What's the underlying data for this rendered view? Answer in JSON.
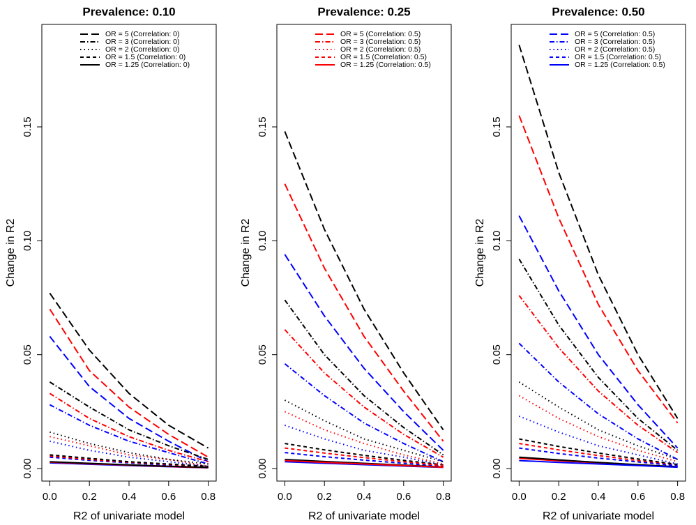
{
  "chart_data": [
    {
      "type": "line",
      "title": "Prevalence: 0.10",
      "xlabel": "R2 of univariate model",
      "ylabel": "Change in R2",
      "xlim": [
        -0.04,
        0.84
      ],
      "ylim": [
        -0.0055,
        0.195
      ],
      "xticks": [
        {
          "value": 0,
          "label": "0.0"
        },
        {
          "value": 0.2,
          "label": "0.2"
        },
        {
          "value": 0.4,
          "label": "0.4"
        },
        {
          "value": 0.6,
          "label": "0.6"
        },
        {
          "value": 0.8,
          "label": "0.8"
        }
      ],
      "yticks": [
        {
          "value": 0,
          "label": "0.00"
        },
        {
          "value": 0.05,
          "label": "0.05"
        },
        {
          "value": 0.1,
          "label": "0.10"
        },
        {
          "value": 0.15,
          "label": "0.15"
        }
      ],
      "x": [
        0,
        0.2,
        0.4,
        0.6,
        0.8
      ],
      "series": [
        {
          "name": "OR = 5 (Correlation: 0)",
          "color": "#000000",
          "linestyle": "longdash",
          "values": [
            0.077,
            0.052,
            0.033,
            0.019,
            0.009
          ]
        },
        {
          "name": "OR = 3 (Correlation: 0)",
          "color": "#000000",
          "linestyle": "dashdot",
          "values": [
            0.038,
            0.027,
            0.017,
            0.01,
            0.004
          ]
        },
        {
          "name": "OR = 2 (Correlation: 0)",
          "color": "#000000",
          "linestyle": "dotted",
          "values": [
            0.016,
            0.011,
            0.007,
            0.004,
            0.002
          ]
        },
        {
          "name": "OR = 1.5 (Correlation: 0)",
          "color": "#000000",
          "linestyle": "dashed",
          "values": [
            0.006,
            0.0045,
            0.003,
            0.002,
            0.001
          ]
        },
        {
          "name": "OR = 1.25 (Correlation: 0)",
          "color": "#000000",
          "linestyle": "solid",
          "values": [
            0.003,
            0.0023,
            0.0016,
            0.001,
            0.0005
          ]
        },
        {
          "color": "#ff0000",
          "linestyle": "longdash",
          "values": [
            0.07,
            0.043,
            0.027,
            0.015,
            0.005
          ]
        },
        {
          "color": "#ff0000",
          "linestyle": "dashdot",
          "values": [
            0.033,
            0.022,
            0.014,
            0.008,
            0.003
          ]
        },
        {
          "color": "#ff0000",
          "linestyle": "dotted",
          "values": [
            0.014,
            0.01,
            0.006,
            0.004,
            0.001
          ]
        },
        {
          "color": "#ff0000",
          "linestyle": "dashed",
          "values": [
            0.0055,
            0.004,
            0.0028,
            0.0018,
            0.0008
          ]
        },
        {
          "color": "#ff0000",
          "linestyle": "solid",
          "values": [
            0.0028,
            0.0021,
            0.0015,
            0.0009,
            0.0004
          ]
        },
        {
          "color": "#0000ff",
          "linestyle": "longdash",
          "values": [
            0.058,
            0.036,
            0.022,
            0.012,
            0.003
          ]
        },
        {
          "color": "#0000ff",
          "linestyle": "dashdot",
          "values": [
            0.028,
            0.019,
            0.012,
            0.007,
            0.002
          ]
        },
        {
          "color": "#0000ff",
          "linestyle": "dotted",
          "values": [
            0.012,
            0.008,
            0.005,
            0.003,
            0.001
          ]
        },
        {
          "color": "#0000ff",
          "linestyle": "dashed",
          "values": [
            0.005,
            0.0036,
            0.0025,
            0.0015,
            0.0006
          ]
        },
        {
          "color": "#0000ff",
          "linestyle": "solid",
          "values": [
            0.0025,
            0.0019,
            0.0013,
            0.0008,
            0.0003
          ]
        }
      ]
    },
    {
      "type": "line",
      "title": "Prevalence: 0.25",
      "xlabel": "R2 of univariate model",
      "ylabel": "Change in R2",
      "xlim": [
        -0.04,
        0.84
      ],
      "ylim": [
        -0.0055,
        0.195
      ],
      "xticks": [
        {
          "value": 0,
          "label": "0.0"
        },
        {
          "value": 0.2,
          "label": "0.2"
        },
        {
          "value": 0.4,
          "label": "0.4"
        },
        {
          "value": 0.6,
          "label": "0.6"
        },
        {
          "value": 0.8,
          "label": "0.8"
        }
      ],
      "yticks": [
        {
          "value": 0,
          "label": "0.00"
        },
        {
          "value": 0.05,
          "label": "0.05"
        },
        {
          "value": 0.1,
          "label": "0.10"
        },
        {
          "value": 0.15,
          "label": "0.15"
        }
      ],
      "x": [
        0,
        0.2,
        0.4,
        0.6,
        0.8
      ],
      "series": [
        {
          "name": "OR = 5 (Correlation: 0.5)",
          "color": "#ff0000",
          "linestyle": "longdash",
          "values": [
            0.125,
            0.088,
            0.058,
            0.034,
            0.012
          ]
        },
        {
          "name": "OR = 3 (Correlation: 0.5)",
          "color": "#ff0000",
          "linestyle": "dashdot",
          "values": [
            0.061,
            0.042,
            0.027,
            0.015,
            0.005
          ]
        },
        {
          "name": "OR = 2 (Correlation: 0.5)",
          "color": "#ff0000",
          "linestyle": "dotted",
          "values": [
            0.025,
            0.017,
            0.011,
            0.006,
            0.002
          ]
        },
        {
          "name": "OR = 1.5 (Correlation: 0.5)",
          "color": "#ff0000",
          "linestyle": "dashed",
          "values": [
            0.009,
            0.0068,
            0.0048,
            0.003,
            0.0013
          ]
        },
        {
          "name": "OR = 1.25 (Correlation: 0.5)",
          "color": "#ff0000",
          "linestyle": "solid",
          "values": [
            0.0035,
            0.0027,
            0.002,
            0.0013,
            0.0006
          ]
        },
        {
          "color": "#000000",
          "linestyle": "longdash",
          "values": [
            0.148,
            0.105,
            0.07,
            0.042,
            0.017
          ]
        },
        {
          "color": "#000000",
          "linestyle": "dashdot",
          "values": [
            0.074,
            0.05,
            0.032,
            0.018,
            0.006
          ]
        },
        {
          "color": "#000000",
          "linestyle": "dotted",
          "values": [
            0.03,
            0.021,
            0.013,
            0.008,
            0.003
          ]
        },
        {
          "color": "#000000",
          "linestyle": "dashed",
          "values": [
            0.011,
            0.0082,
            0.0058,
            0.0036,
            0.0016
          ]
        },
        {
          "color": "#000000",
          "linestyle": "solid",
          "values": [
            0.004,
            0.0031,
            0.0023,
            0.0015,
            0.0007
          ]
        },
        {
          "color": "#0000ff",
          "linestyle": "longdash",
          "values": [
            0.094,
            0.067,
            0.044,
            0.025,
            0.008
          ]
        },
        {
          "color": "#0000ff",
          "linestyle": "dashdot",
          "values": [
            0.046,
            0.032,
            0.02,
            0.011,
            0.003
          ]
        },
        {
          "color": "#0000ff",
          "linestyle": "dotted",
          "values": [
            0.019,
            0.013,
            0.008,
            0.005,
            0.0015
          ]
        },
        {
          "color": "#0000ff",
          "linestyle": "dashed",
          "values": [
            0.007,
            0.0052,
            0.0037,
            0.0023,
            0.001
          ]
        },
        {
          "color": "#0000ff",
          "linestyle": "solid",
          "values": [
            0.003,
            0.0023,
            0.0017,
            0.0011,
            0.0005
          ]
        }
      ]
    },
    {
      "type": "line",
      "title": "Prevalence: 0.50",
      "xlabel": "R2 of univariate model",
      "ylabel": "Change in R2",
      "xlim": [
        -0.04,
        0.84
      ],
      "ylim": [
        -0.0055,
        0.195
      ],
      "xticks": [
        {
          "value": 0,
          "label": "0.0"
        },
        {
          "value": 0.2,
          "label": "0.2"
        },
        {
          "value": 0.4,
          "label": "0.4"
        },
        {
          "value": 0.6,
          "label": "0.6"
        },
        {
          "value": 0.8,
          "label": "0.8"
        }
      ],
      "yticks": [
        {
          "value": 0,
          "label": "0.00"
        },
        {
          "value": 0.05,
          "label": "0.05"
        },
        {
          "value": 0.1,
          "label": "0.10"
        },
        {
          "value": 0.15,
          "label": "0.15"
        }
      ],
      "x": [
        0,
        0.2,
        0.4,
        0.6,
        0.8
      ],
      "series": [
        {
          "name": "OR = 5 (Correlation: 0.5)",
          "color": "#0000ff",
          "linestyle": "longdash",
          "values": [
            0.111,
            0.078,
            0.05,
            0.028,
            0.009
          ]
        },
        {
          "name": "OR = 3 (Correlation: 0.5)",
          "color": "#0000ff",
          "linestyle": "dashdot",
          "values": [
            0.055,
            0.038,
            0.024,
            0.013,
            0.004
          ]
        },
        {
          "name": "OR = 2 (Correlation: 0.5)",
          "color": "#0000ff",
          "linestyle": "dotted",
          "values": [
            0.023,
            0.016,
            0.01,
            0.006,
            0.002
          ]
        },
        {
          "name": "OR = 1.5 (Correlation: 0.5)",
          "color": "#0000ff",
          "linestyle": "dashed",
          "values": [
            0.009,
            0.0066,
            0.0046,
            0.0029,
            0.0012
          ]
        },
        {
          "name": "OR = 1.25 (Correlation: 0.5)",
          "color": "#0000ff",
          "linestyle": "solid",
          "values": [
            0.0035,
            0.0027,
            0.002,
            0.0013,
            0.0006
          ]
        },
        {
          "color": "#000000",
          "linestyle": "longdash",
          "values": [
            0.186,
            0.13,
            0.085,
            0.05,
            0.022
          ]
        },
        {
          "color": "#000000",
          "linestyle": "dashdot",
          "values": [
            0.092,
            0.063,
            0.04,
            0.022,
            0.008
          ]
        },
        {
          "color": "#000000",
          "linestyle": "dotted",
          "values": [
            0.038,
            0.027,
            0.017,
            0.01,
            0.004
          ]
        },
        {
          "color": "#000000",
          "linestyle": "dashed",
          "values": [
            0.013,
            0.0097,
            0.0068,
            0.0042,
            0.0018
          ]
        },
        {
          "color": "#000000",
          "linestyle": "solid",
          "values": [
            0.005,
            0.0038,
            0.0027,
            0.0017,
            0.0008
          ]
        },
        {
          "color": "#ff0000",
          "linestyle": "longdash",
          "values": [
            0.155,
            0.11,
            0.072,
            0.043,
            0.02
          ]
        },
        {
          "color": "#ff0000",
          "linestyle": "dashdot",
          "values": [
            0.076,
            0.053,
            0.034,
            0.019,
            0.007
          ]
        },
        {
          "color": "#ff0000",
          "linestyle": "dotted",
          "values": [
            0.032,
            0.022,
            0.014,
            0.008,
            0.003
          ]
        },
        {
          "color": "#ff0000",
          "linestyle": "dashed",
          "values": [
            0.011,
            0.0082,
            0.0057,
            0.0035,
            0.0015
          ]
        },
        {
          "color": "#ff0000",
          "linestyle": "solid",
          "values": [
            0.0045,
            0.0034,
            0.0025,
            0.0016,
            0.0007
          ]
        }
      ]
    }
  ]
}
